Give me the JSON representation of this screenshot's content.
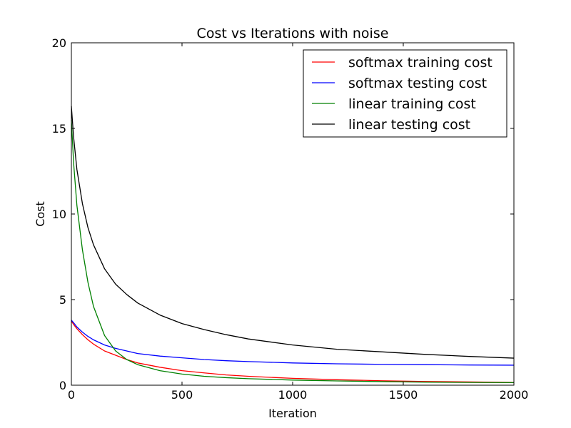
{
  "chart_data": {
    "type": "line",
    "title": "Cost vs Iterations with noise",
    "xlabel": "Iteration",
    "ylabel": "Cost",
    "xlim": [
      0,
      2000
    ],
    "ylim": [
      0,
      20
    ],
    "xticks": [
      "0",
      "500",
      "1000",
      "1500",
      "2000"
    ],
    "yticks": [
      "0",
      "5",
      "10",
      "15",
      "20"
    ],
    "grid": false,
    "legend_position": "top-right",
    "x": [
      0,
      10,
      25,
      50,
      75,
      100,
      150,
      200,
      250,
      300,
      400,
      500,
      600,
      700,
      800,
      1000,
      1200,
      1400,
      1600,
      1800,
      2000
    ],
    "series": [
      {
        "name": "softmax training cost",
        "color": "#ff0000",
        "values": [
          3.75,
          3.55,
          3.3,
          2.95,
          2.65,
          2.4,
          2.0,
          1.75,
          1.5,
          1.3,
          1.05,
          0.85,
          0.72,
          0.6,
          0.52,
          0.4,
          0.32,
          0.26,
          0.22,
          0.19,
          0.16
        ]
      },
      {
        "name": "softmax testing cost",
        "color": "#0000ff",
        "values": [
          3.8,
          3.65,
          3.4,
          3.1,
          2.85,
          2.65,
          2.35,
          2.15,
          2.0,
          1.85,
          1.7,
          1.6,
          1.5,
          1.43,
          1.38,
          1.3,
          1.25,
          1.22,
          1.2,
          1.18,
          1.17
        ]
      },
      {
        "name": "linear training cost",
        "color": "#008000",
        "values": [
          15.5,
          13.0,
          10.5,
          7.9,
          6.0,
          4.6,
          2.9,
          2.0,
          1.5,
          1.2,
          0.85,
          0.65,
          0.52,
          0.44,
          0.38,
          0.3,
          0.25,
          0.21,
          0.18,
          0.16,
          0.15
        ]
      },
      {
        "name": "linear testing cost",
        "color": "#000000",
        "values": [
          16.3,
          14.5,
          12.6,
          10.6,
          9.2,
          8.2,
          6.8,
          5.9,
          5.3,
          4.8,
          4.1,
          3.6,
          3.25,
          2.95,
          2.7,
          2.35,
          2.1,
          1.95,
          1.8,
          1.68,
          1.58
        ]
      }
    ]
  }
}
